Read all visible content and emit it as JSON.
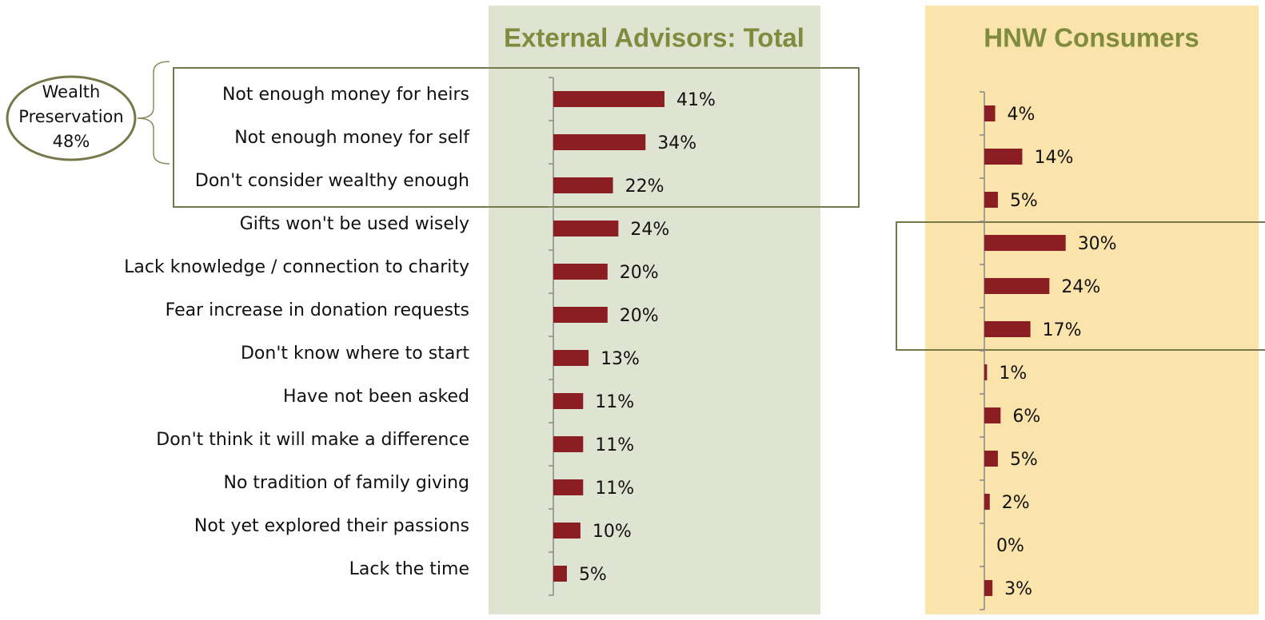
{
  "chart_data": [
    {
      "type": "bar",
      "orientation": "horizontal",
      "title": "External Advisors: Total",
      "categories": [
        "Not enough money for heirs",
        "Not enough money for self",
        "Don't consider wealthy enough",
        "Gifts won't be used wisely",
        "Lack knowledge / connection to charity",
        "Fear increase in donation requests",
        "Don't know where to start",
        "Have not been asked",
        "Don't think it will make a difference",
        "No tradition of family giving",
        "Not yet explored their passions",
        "Lack the time"
      ],
      "values": [
        41,
        34,
        22,
        24,
        20,
        20,
        13,
        11,
        11,
        11,
        10,
        5
      ],
      "value_labels": [
        "41%",
        "34%",
        "22%",
        "24%",
        "20%",
        "20%",
        "13%",
        "11%",
        "11%",
        "11%",
        "10%",
        "5%"
      ],
      "xlim": [
        0,
        100
      ],
      "color": "#8b1e22",
      "annotation": {
        "label": "Wealth Preservation",
        "value": 48,
        "value_label": "48%"
      }
    },
    {
      "type": "bar",
      "orientation": "horizontal",
      "title": "HNW Consumers",
      "values": [
        4,
        14,
        5,
        30,
        24,
        17,
        1,
        6,
        5,
        2,
        0,
        3
      ],
      "value_labels": [
        "4%",
        "14%",
        "5%",
        "30%",
        "24%",
        "17%",
        "1%",
        "6%",
        "5%",
        "2%",
        "0%",
        "3%"
      ],
      "xlim": [
        0,
        100
      ],
      "color": "#8b1e22"
    }
  ]
}
